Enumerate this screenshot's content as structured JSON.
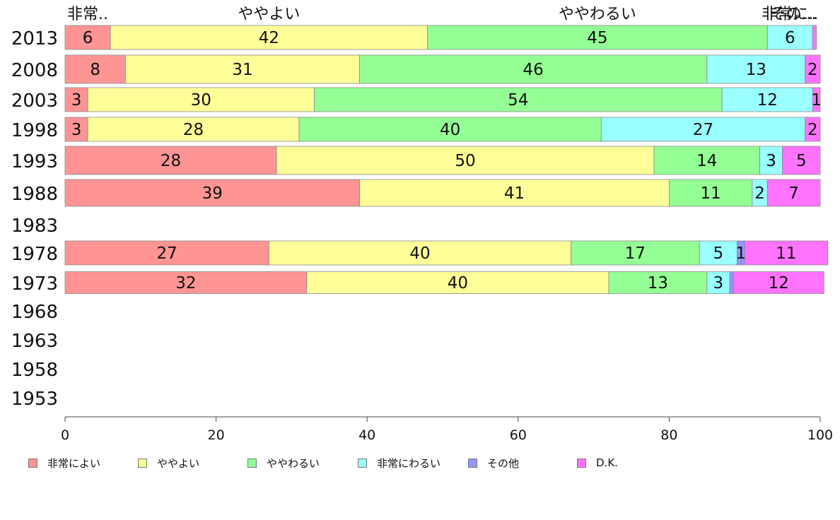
{
  "chart_data": {
    "type": "bar",
    "orientation": "horizontal",
    "stacked": true,
    "categories": [
      "2013",
      "2008",
      "2003",
      "1998",
      "1993",
      "1988",
      "1983",
      "1978",
      "1973",
      "1968",
      "1963",
      "1958",
      "1953"
    ],
    "series": [
      {
        "name": "非常によい",
        "color": "#ff9494",
        "values": [
          6,
          8,
          3,
          3,
          28,
          39,
          null,
          27,
          32,
          null,
          null,
          null,
          null
        ]
      },
      {
        "name": "ややよい",
        "color": "#ffff99",
        "values": [
          42,
          31,
          30,
          28,
          50,
          41,
          null,
          40,
          40,
          null,
          null,
          null,
          null
        ]
      },
      {
        "name": "ややわるい",
        "color": "#94ff94",
        "values": [
          45,
          46,
          54,
          40,
          14,
          11,
          null,
          17,
          13,
          null,
          null,
          null,
          null
        ]
      },
      {
        "name": "非常にわるい",
        "color": "#99ffff",
        "values": [
          6,
          13,
          12,
          27,
          3,
          2,
          null,
          5,
          3,
          null,
          null,
          null,
          null
        ]
      },
      {
        "name": "その他",
        "color": "#9494ff",
        "values": [
          0,
          0,
          0,
          0,
          0,
          0,
          null,
          1,
          0.5,
          null,
          null,
          null,
          null
        ]
      },
      {
        "name": "D.K.",
        "color": "#ff73ff",
        "values": [
          0.5,
          2,
          1,
          2,
          5,
          7,
          null,
          11,
          12,
          null,
          null,
          null,
          null
        ]
      }
    ],
    "top_labels": [
      "非常..",
      "ややよい",
      "ややわるい",
      "非常に..",
      "その..."
    ],
    "xlim": [
      0,
      100
    ],
    "xticks": [
      0,
      20,
      40,
      60,
      80,
      100
    ],
    "legend_position": "bottom",
    "grid": false
  }
}
